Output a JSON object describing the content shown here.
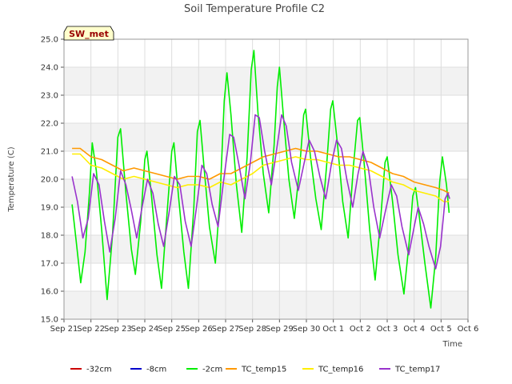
{
  "chart_data": {
    "type": "line",
    "title": "Soil Temperature Profile C2",
    "xlabel": "Time",
    "ylabel": "Temperature (C)",
    "ylim": [
      15.0,
      25.0
    ],
    "xlim": [
      "2023-09-21",
      "2023-10-06"
    ],
    "x_ticks": [
      "Sep 21",
      "Sep 22",
      "Sep 23",
      "Sep 24",
      "Sep 25",
      "Sep 26",
      "Sep 27",
      "Sep 28",
      "Sep 29",
      "Sep 30",
      "Oct 1",
      "Oct 2",
      "Oct 3",
      "Oct 4",
      "Oct 5",
      "Oct 6"
    ],
    "y_ticks": [
      "15.0",
      "16.0",
      "17.0",
      "18.0",
      "19.0",
      "20.0",
      "21.0",
      "22.0",
      "23.0",
      "24.0",
      "25.0"
    ],
    "grid": true,
    "banded_background": true,
    "legend_placement": "bottom",
    "annotation": "SW_met",
    "colors": {
      "-32cm": "#cc0000",
      "-8cm": "#0000cc",
      "-2cm": "#00ee00",
      "TC_temp15": "#ff9900",
      "TC_temp16": "#ffee00",
      "TC_temp17": "#9933cc"
    },
    "series": [
      {
        "name": "-32cm",
        "points": []
      },
      {
        "name": "-8cm",
        "points": []
      },
      {
        "name": "-2cm",
        "points": [
          [
            0.3,
            19.1
          ],
          [
            0.45,
            17.8
          ],
          [
            0.62,
            16.3
          ],
          [
            0.78,
            17.4
          ],
          [
            0.95,
            19.6
          ],
          [
            1.05,
            21.3
          ],
          [
            1.2,
            20.3
          ],
          [
            1.4,
            18.2
          ],
          [
            1.6,
            15.7
          ],
          [
            1.8,
            18.0
          ],
          [
            2.0,
            21.5
          ],
          [
            2.1,
            21.8
          ],
          [
            2.3,
            19.5
          ],
          [
            2.5,
            17.5
          ],
          [
            2.65,
            16.6
          ],
          [
            2.85,
            18.5
          ],
          [
            3.0,
            20.7
          ],
          [
            3.08,
            21.0
          ],
          [
            3.25,
            19.4
          ],
          [
            3.45,
            17.3
          ],
          [
            3.62,
            16.1
          ],
          [
            3.82,
            18.7
          ],
          [
            4.0,
            21.0
          ],
          [
            4.08,
            21.3
          ],
          [
            4.25,
            19.4
          ],
          [
            4.45,
            17.4
          ],
          [
            4.62,
            16.1
          ],
          [
            4.82,
            19.0
          ],
          [
            4.95,
            21.7
          ],
          [
            5.05,
            22.1
          ],
          [
            5.2,
            20.4
          ],
          [
            5.4,
            18.3
          ],
          [
            5.62,
            17.0
          ],
          [
            5.8,
            19.5
          ],
          [
            5.95,
            22.8
          ],
          [
            6.05,
            23.8
          ],
          [
            6.2,
            22.3
          ],
          [
            6.4,
            19.8
          ],
          [
            6.6,
            18.1
          ],
          [
            6.8,
            20.8
          ],
          [
            6.95,
            23.9
          ],
          [
            7.05,
            24.6
          ],
          [
            7.2,
            22.4
          ],
          [
            7.4,
            20.2
          ],
          [
            7.6,
            18.8
          ],
          [
            7.8,
            21.2
          ],
          [
            7.92,
            23.3
          ],
          [
            8.0,
            24.0
          ],
          [
            8.15,
            22.2
          ],
          [
            8.35,
            20.0
          ],
          [
            8.55,
            18.6
          ],
          [
            8.75,
            20.4
          ],
          [
            8.9,
            22.3
          ],
          [
            8.97,
            22.5
          ],
          [
            9.15,
            20.8
          ],
          [
            9.35,
            19.3
          ],
          [
            9.55,
            18.2
          ],
          [
            9.75,
            20.5
          ],
          [
            9.9,
            22.5
          ],
          [
            9.98,
            22.8
          ],
          [
            10.15,
            21.3
          ],
          [
            10.35,
            19.2
          ],
          [
            10.55,
            17.9
          ],
          [
            10.75,
            20.5
          ],
          [
            10.9,
            22.1
          ],
          [
            10.98,
            22.2
          ],
          [
            11.15,
            20.5
          ],
          [
            11.35,
            18.2
          ],
          [
            11.55,
            16.4
          ],
          [
            11.75,
            18.5
          ],
          [
            11.92,
            20.6
          ],
          [
            12.0,
            20.8
          ],
          [
            12.2,
            19.2
          ],
          [
            12.4,
            17.3
          ],
          [
            12.62,
            15.9
          ],
          [
            12.82,
            17.8
          ],
          [
            12.95,
            19.4
          ],
          [
            13.05,
            19.7
          ],
          [
            13.2,
            18.6
          ],
          [
            13.4,
            17.0
          ],
          [
            13.62,
            15.4
          ],
          [
            13.8,
            17.2
          ],
          [
            13.95,
            19.9
          ],
          [
            14.05,
            20.8
          ],
          [
            14.2,
            19.8
          ],
          [
            14.3,
            18.8
          ]
        ]
      },
      {
        "name": "TC_temp15",
        "points": [
          [
            0.3,
            21.1
          ],
          [
            0.6,
            21.1
          ],
          [
            1.0,
            20.8
          ],
          [
            1.4,
            20.7
          ],
          [
            1.8,
            20.5
          ],
          [
            2.2,
            20.3
          ],
          [
            2.6,
            20.4
          ],
          [
            3.0,
            20.3
          ],
          [
            3.4,
            20.2
          ],
          [
            3.8,
            20.1
          ],
          [
            4.2,
            20.0
          ],
          [
            4.6,
            20.1
          ],
          [
            5.0,
            20.1
          ],
          [
            5.4,
            20.0
          ],
          [
            5.8,
            20.2
          ],
          [
            6.2,
            20.2
          ],
          [
            6.6,
            20.4
          ],
          [
            7.0,
            20.6
          ],
          [
            7.4,
            20.8
          ],
          [
            7.8,
            20.9
          ],
          [
            8.2,
            21.0
          ],
          [
            8.6,
            21.1
          ],
          [
            9.0,
            21.0
          ],
          [
            9.4,
            21.0
          ],
          [
            9.8,
            20.9
          ],
          [
            10.2,
            20.8
          ],
          [
            10.6,
            20.8
          ],
          [
            11.0,
            20.7
          ],
          [
            11.4,
            20.6
          ],
          [
            11.8,
            20.4
          ],
          [
            12.2,
            20.2
          ],
          [
            12.6,
            20.1
          ],
          [
            13.0,
            19.9
          ],
          [
            13.4,
            19.8
          ],
          [
            13.8,
            19.7
          ],
          [
            14.1,
            19.6
          ],
          [
            14.3,
            19.5
          ]
        ]
      },
      {
        "name": "TC_temp16",
        "points": [
          [
            0.3,
            20.9
          ],
          [
            0.6,
            20.9
          ],
          [
            1.0,
            20.5
          ],
          [
            1.4,
            20.4
          ],
          [
            1.8,
            20.2
          ],
          [
            2.2,
            20.0
          ],
          [
            2.6,
            20.1
          ],
          [
            3.0,
            20.0
          ],
          [
            3.4,
            19.9
          ],
          [
            3.8,
            19.8
          ],
          [
            4.2,
            19.7
          ],
          [
            4.6,
            19.8
          ],
          [
            5.0,
            19.8
          ],
          [
            5.4,
            19.7
          ],
          [
            5.8,
            19.9
          ],
          [
            6.2,
            19.8
          ],
          [
            6.6,
            20.0
          ],
          [
            7.0,
            20.2
          ],
          [
            7.4,
            20.5
          ],
          [
            7.8,
            20.6
          ],
          [
            8.2,
            20.7
          ],
          [
            8.6,
            20.8
          ],
          [
            9.0,
            20.7
          ],
          [
            9.4,
            20.7
          ],
          [
            9.8,
            20.6
          ],
          [
            10.2,
            20.5
          ],
          [
            10.6,
            20.5
          ],
          [
            11.0,
            20.4
          ],
          [
            11.4,
            20.3
          ],
          [
            11.8,
            20.1
          ],
          [
            12.2,
            19.9
          ],
          [
            12.6,
            19.8
          ],
          [
            13.0,
            19.6
          ],
          [
            13.4,
            19.5
          ],
          [
            13.8,
            19.4
          ],
          [
            14.1,
            19.2
          ],
          [
            14.3,
            19.2
          ]
        ]
      },
      {
        "name": "TC_temp17",
        "points": [
          [
            0.3,
            20.1
          ],
          [
            0.5,
            19.2
          ],
          [
            0.7,
            17.9
          ],
          [
            0.9,
            18.6
          ],
          [
            1.1,
            20.2
          ],
          [
            1.3,
            19.8
          ],
          [
            1.5,
            18.5
          ],
          [
            1.7,
            17.4
          ],
          [
            1.9,
            18.6
          ],
          [
            2.1,
            20.3
          ],
          [
            2.3,
            19.8
          ],
          [
            2.5,
            18.9
          ],
          [
            2.7,
            17.9
          ],
          [
            2.9,
            19.0
          ],
          [
            3.1,
            20.0
          ],
          [
            3.3,
            19.5
          ],
          [
            3.5,
            18.4
          ],
          [
            3.7,
            17.6
          ],
          [
            3.9,
            18.8
          ],
          [
            4.1,
            20.1
          ],
          [
            4.3,
            19.8
          ],
          [
            4.5,
            18.5
          ],
          [
            4.72,
            17.6
          ],
          [
            4.92,
            19.0
          ],
          [
            5.12,
            20.5
          ],
          [
            5.3,
            20.2
          ],
          [
            5.5,
            19.1
          ],
          [
            5.72,
            18.3
          ],
          [
            5.92,
            19.9
          ],
          [
            6.15,
            21.6
          ],
          [
            6.3,
            21.5
          ],
          [
            6.5,
            20.5
          ],
          [
            6.72,
            19.3
          ],
          [
            6.92,
            20.6
          ],
          [
            7.1,
            22.3
          ],
          [
            7.25,
            22.2
          ],
          [
            7.45,
            21.0
          ],
          [
            7.7,
            19.8
          ],
          [
            7.9,
            21.1
          ],
          [
            8.08,
            22.3
          ],
          [
            8.25,
            21.9
          ],
          [
            8.45,
            20.6
          ],
          [
            8.7,
            19.6
          ],
          [
            8.9,
            20.5
          ],
          [
            9.1,
            21.4
          ],
          [
            9.3,
            21.0
          ],
          [
            9.5,
            20.1
          ],
          [
            9.72,
            19.3
          ],
          [
            9.92,
            20.5
          ],
          [
            10.12,
            21.4
          ],
          [
            10.3,
            21.1
          ],
          [
            10.5,
            20.0
          ],
          [
            10.72,
            19.0
          ],
          [
            10.92,
            20.2
          ],
          [
            11.1,
            21.0
          ],
          [
            11.3,
            20.4
          ],
          [
            11.5,
            19.0
          ],
          [
            11.72,
            17.9
          ],
          [
            11.92,
            18.8
          ],
          [
            12.15,
            19.8
          ],
          [
            12.35,
            19.4
          ],
          [
            12.55,
            18.3
          ],
          [
            12.8,
            17.3
          ],
          [
            13.0,
            18.3
          ],
          [
            13.15,
            19.0
          ],
          [
            13.35,
            18.4
          ],
          [
            13.55,
            17.6
          ],
          [
            13.8,
            16.8
          ],
          [
            13.98,
            17.6
          ],
          [
            14.15,
            19.3
          ],
          [
            14.25,
            19.5
          ],
          [
            14.32,
            19.3
          ]
        ]
      }
    ]
  }
}
